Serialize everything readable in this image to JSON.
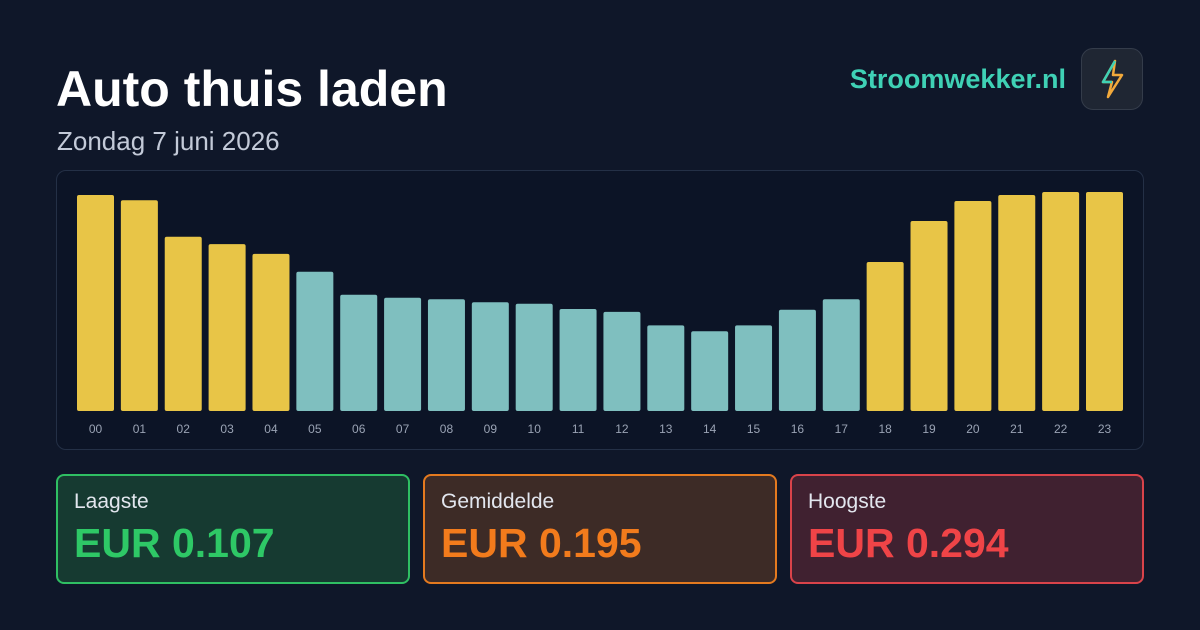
{
  "header": {
    "title": "Auto thuis laden",
    "subtitle": "Zondag 7 juni 2026",
    "brand": "Stroomwekker.nl"
  },
  "chart_data": {
    "type": "bar",
    "categories": [
      "00",
      "01",
      "02",
      "03",
      "04",
      "05",
      "06",
      "07",
      "08",
      "09",
      "10",
      "11",
      "12",
      "13",
      "14",
      "15",
      "16",
      "17",
      "18",
      "19",
      "20",
      "21",
      "22",
      "23"
    ],
    "values": [
      0.29,
      0.283,
      0.234,
      0.224,
      0.211,
      0.187,
      0.156,
      0.152,
      0.15,
      0.146,
      0.144,
      0.137,
      0.133,
      0.115,
      0.107,
      0.115,
      0.136,
      0.15,
      0.2,
      0.255,
      0.282,
      0.29,
      0.294,
      0.294
    ],
    "colors": [
      "#e8c547",
      "#e8c547",
      "#e8c547",
      "#e8c547",
      "#e8c547",
      "#7fbfbf",
      "#7fbfbf",
      "#7fbfbf",
      "#7fbfbf",
      "#7fbfbf",
      "#7fbfbf",
      "#7fbfbf",
      "#7fbfbf",
      "#7fbfbf",
      "#7fbfbf",
      "#7fbfbf",
      "#7fbfbf",
      "#7fbfbf",
      "#e8c547",
      "#e8c547",
      "#e8c547",
      "#e8c547",
      "#e8c547",
      "#e8c547"
    ]
  },
  "stats": [
    {
      "label": "Laagste",
      "value": "EUR 0.107"
    },
    {
      "label": "Gemiddelde",
      "value": "EUR 0.195"
    },
    {
      "label": "Hoogste",
      "value": "EUR 0.294"
    }
  ]
}
